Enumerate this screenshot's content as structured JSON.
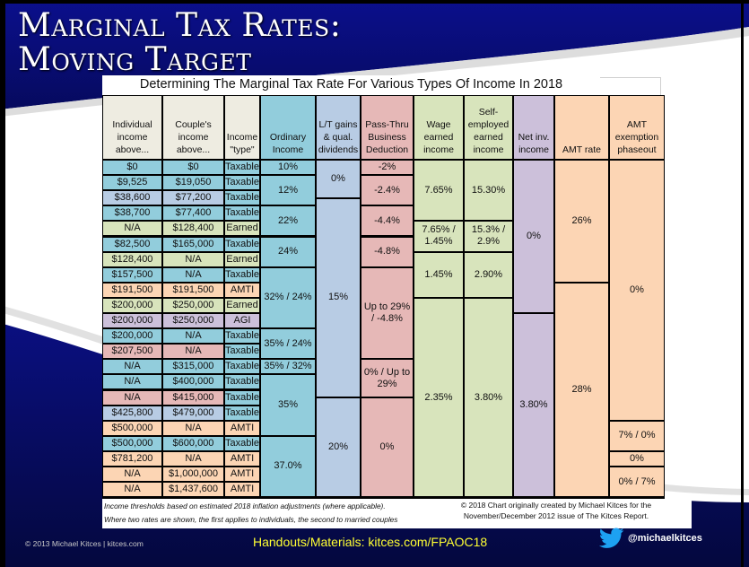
{
  "slide": {
    "title_line1": "Marginal Tax Rates:",
    "title_line2": "Moving Target",
    "colors": {
      "navy": "#0a0f7a",
      "taxable_blue": "#92cddc",
      "ltcg_blue": "#b8cce4",
      "passthru_red": "#e6b8b7",
      "earned_green": "#d8e4bc",
      "agi_purple": "#ccc0da",
      "amti_orange": "#fcd5b4",
      "header_beige": "#eeece1",
      "handout_yellow": "#ffff33"
    }
  },
  "table": {
    "title": "Determining The Marginal Tax Rate For Various Types Of Income In 2018",
    "headers": [
      "Individual income above...",
      "Couple's income above...",
      "Income \"type\"",
      "Ordinary Income",
      "L/T gains & qual. dividends",
      "Pass-Thru Business Deduction",
      "Wage earned income",
      "Self-employed earned income",
      "Net inv. income",
      "AMT rate",
      "AMT exemption phaseout"
    ],
    "rows": [
      {
        "individual": "$0",
        "couple": "$0",
        "type": "Taxable"
      },
      {
        "individual": "$9,525",
        "couple": "$19,050",
        "type": "Taxable"
      },
      {
        "individual": "$38,600",
        "couple": "$77,200",
        "type": "Taxable"
      },
      {
        "individual": "$38,700",
        "couple": "$77,400",
        "type": "Taxable"
      },
      {
        "individual": "N/A",
        "couple": "$128,400",
        "type": "Earned"
      },
      {
        "individual": "$82,500",
        "couple": "$165,000",
        "type": "Taxable"
      },
      {
        "individual": "$128,400",
        "couple": "N/A",
        "type": "Earned"
      },
      {
        "individual": "$157,500",
        "couple": "N/A",
        "type": "Taxable"
      },
      {
        "individual": "$191,500",
        "couple": "$191,500",
        "type": "AMTI"
      },
      {
        "individual": "$200,000",
        "couple": "$250,000",
        "type": "Earned"
      },
      {
        "individual": "$200,000",
        "couple": "$250,000",
        "type": "AGI"
      },
      {
        "individual": "$200,000",
        "couple": "N/A",
        "type": "Taxable"
      },
      {
        "individual": "$207,500",
        "couple": "N/A",
        "type": "Taxable"
      },
      {
        "individual": "N/A",
        "couple": "$315,000",
        "type": "Taxable"
      },
      {
        "individual": "N/A",
        "couple": "$400,000",
        "type": "Taxable"
      },
      {
        "individual": "N/A",
        "couple": "$415,000",
        "type": "Taxable"
      },
      {
        "individual": "$425,800",
        "couple": "$479,000",
        "type": "Taxable"
      },
      {
        "individual": "$500,000",
        "couple": "N/A",
        "type": "AMTI"
      },
      {
        "individual": "$500,000",
        "couple": "$600,000",
        "type": "Taxable"
      },
      {
        "individual": "$781,200",
        "couple": "N/A",
        "type": "AMTI"
      },
      {
        "individual": "N/A",
        "couple": "$1,000,000",
        "type": "AMTI"
      },
      {
        "individual": "N/A",
        "couple": "$1,437,600",
        "type": "AMTI"
      }
    ],
    "ordinary_income": [
      "10%",
      "12%",
      "22%",
      "24%",
      "32% / 24%",
      "35% / 24%",
      "35% / 32%",
      "35%",
      "37.0%"
    ],
    "ltcg": [
      "0%",
      "15%",
      "20%"
    ],
    "passthru": [
      "-2%",
      "-2.4%",
      "-4.4%",
      "-4.8%",
      "Up to 29% / -4.8%",
      "0% / Up to 29%",
      "0%"
    ],
    "wage": [
      "7.65%",
      "7.65% / 1.45%",
      "1.45%",
      "2.35%"
    ],
    "self_employed": [
      "15.30%",
      "15.3% / 2.9%",
      "2.90%",
      "3.80%"
    ],
    "net_inv": [
      "0%",
      "3.80%"
    ],
    "amt_rate": [
      "26%",
      "28%"
    ],
    "amt_phaseout": [
      "0%",
      "7% / 0%",
      "0%",
      "0% / 7%"
    ],
    "note1": "Income thresholds based on estimated 2018 inflation adjustments (where applicable).",
    "note2": "Where two rates are shown, the first applies to individuals, the second to married couples",
    "credit_line1": "© 2018  Chart originally created by Michael Kitces for the",
    "credit_line2": "November/December 2012 issue of The Kitces Report."
  },
  "footer": {
    "copyright": "© 2013 Michael Kitces  |  kitces.com",
    "handouts": "Handouts/Materials: kitces.com/FPAOC18",
    "twitter_handle": "@michaelkitces",
    "twitter_icon": "twitter-bird-icon"
  }
}
